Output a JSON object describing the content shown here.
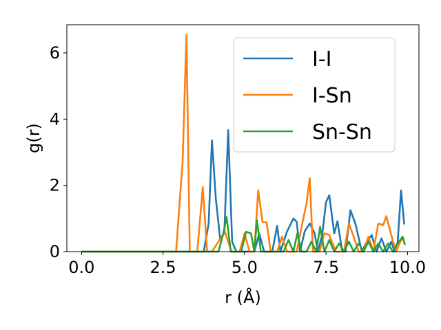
{
  "chart_data": {
    "type": "line",
    "xlabel": "r (Å)",
    "ylabel": "g(r)",
    "xlim": [
      -0.45,
      10.35
    ],
    "ylim": [
      0,
      6.85
    ],
    "xticks": [
      0.0,
      2.5,
      5.0,
      7.5,
      10.0
    ],
    "xtick_labels": [
      "0.0",
      "2.5",
      "5.0",
      "7.5",
      "10.0"
    ],
    "yticks": [
      0,
      2,
      4,
      6
    ],
    "ytick_labels": [
      "0",
      "2",
      "4",
      "6"
    ],
    "grid": false,
    "legend_position": "top-right",
    "series": [
      {
        "name": "I-I",
        "color": "#1f77b4",
        "x": [
          0.0,
          3.55,
          3.75,
          3.9,
          4.0,
          4.12,
          4.25,
          4.38,
          4.5,
          4.62,
          4.75,
          5.3,
          5.45,
          5.6,
          5.75,
          5.85,
          6.0,
          6.1,
          6.3,
          6.5,
          6.6,
          6.7,
          6.85,
          7.0,
          7.15,
          7.25,
          7.38,
          7.5,
          7.6,
          7.75,
          7.85,
          8.0,
          8.1,
          8.25,
          8.4,
          8.6,
          8.75,
          8.9,
          9.05,
          9.2,
          9.35,
          9.5,
          9.6,
          9.7,
          9.8,
          9.9
        ],
        "y": [
          0.0,
          0.0,
          0.0,
          0.85,
          3.36,
          1.6,
          0.4,
          0.55,
          3.67,
          0.3,
          0.0,
          0.0,
          0.55,
          0.0,
          0.0,
          0.0,
          0.78,
          0.0,
          0.6,
          1.0,
          0.9,
          0.0,
          0.62,
          0.85,
          0.55,
          0.0,
          0.5,
          1.5,
          1.7,
          0.55,
          0.92,
          0.0,
          0.0,
          1.25,
          0.85,
          0.0,
          0.3,
          0.5,
          0.0,
          0.4,
          0.0,
          0.3,
          0.0,
          0.3,
          1.85,
          0.82
        ]
      },
      {
        "name": "I-Sn",
        "color": "#ff7f0e",
        "x": [
          0.0,
          2.9,
          3.1,
          3.22,
          3.32,
          3.55,
          3.72,
          3.85,
          4.0,
          4.4,
          4.6,
          4.85,
          5.0,
          5.15,
          5.3,
          5.42,
          5.55,
          5.68,
          5.8,
          6.0,
          6.15,
          6.3,
          6.45,
          6.6,
          6.75,
          6.9,
          7.0,
          7.1,
          7.3,
          7.45,
          7.6,
          7.8,
          7.95,
          8.05,
          8.2,
          8.35,
          8.5,
          8.65,
          8.8,
          8.95,
          9.1,
          9.25,
          9.35,
          9.5,
          9.65,
          9.8,
          9.9
        ],
        "y": [
          0.0,
          0.0,
          2.7,
          6.55,
          0.0,
          0.0,
          1.95,
          0.0,
          0.0,
          0.6,
          0.0,
          0.0,
          0.55,
          0.0,
          0.0,
          1.85,
          0.9,
          0.88,
          0.0,
          0.0,
          0.45,
          0.0,
          0.0,
          0.0,
          0.75,
          1.45,
          2.22,
          0.0,
          0.0,
          0.55,
          0.5,
          0.0,
          0.0,
          0.0,
          0.85,
          0.45,
          0.0,
          0.0,
          0.45,
          0.0,
          0.85,
          0.8,
          1.07,
          0.5,
          0.0,
          0.35,
          0.4
        ]
      },
      {
        "name": "Sn-Sn",
        "color": "#2ca02c",
        "x": [
          0.0,
          4.2,
          4.35,
          4.45,
          4.58,
          4.75,
          4.9,
          5.05,
          5.2,
          5.3,
          5.38,
          5.5,
          5.7,
          6.2,
          6.35,
          6.5,
          6.62,
          6.75,
          6.9,
          7.05,
          7.2,
          7.32,
          7.45,
          7.6,
          7.75,
          7.9,
          8.05,
          8.2,
          8.35,
          8.5,
          8.65,
          8.8,
          8.95,
          9.1,
          9.25,
          9.4,
          9.55,
          9.7,
          9.85,
          9.92
        ],
        "y": [
          0.0,
          0.0,
          0.55,
          1.05,
          0.0,
          0.0,
          0.0,
          0.6,
          0.55,
          0.0,
          0.95,
          0.0,
          0.0,
          0.0,
          0.35,
          0.0,
          0.55,
          0.0,
          0.0,
          0.3,
          0.0,
          0.75,
          0.0,
          0.35,
          0.0,
          0.25,
          0.0,
          0.3,
          0.0,
          0.25,
          0.0,
          0.3,
          0.0,
          0.25,
          0.0,
          0.25,
          0.0,
          0.25,
          0.45,
          0.2
        ]
      }
    ]
  }
}
